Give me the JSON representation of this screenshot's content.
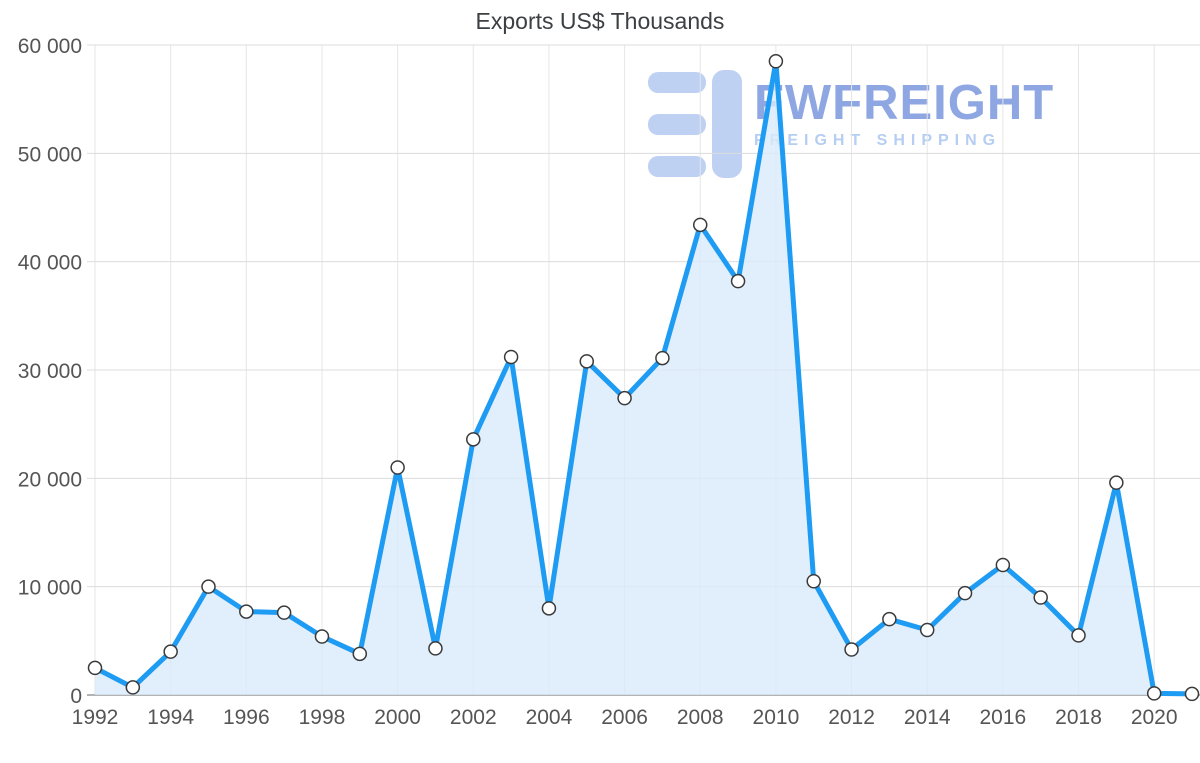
{
  "chart_data": {
    "type": "area",
    "title": "Exports US$ Thousands",
    "x": [
      1992,
      1993,
      1994,
      1995,
      1996,
      1997,
      1998,
      1999,
      2000,
      2001,
      2002,
      2003,
      2004,
      2005,
      2006,
      2007,
      2008,
      2009,
      2010,
      2011,
      2012,
      2013,
      2014,
      2015,
      2016,
      2017,
      2018,
      2019,
      2020,
      2021
    ],
    "values": [
      2500,
      700,
      4000,
      10000,
      7700,
      7600,
      5400,
      3800,
      21000,
      4300,
      23600,
      31200,
      8000,
      30800,
      27400,
      31100,
      43400,
      38200,
      58500,
      10500,
      4200,
      7000,
      6000,
      9400,
      12000,
      9000,
      5500,
      19600,
      150,
      100
    ],
    "ylim": [
      0,
      60000
    ],
    "ytick_step": 10000,
    "ytick_labels": [
      "0",
      "10 000",
      "20 000",
      "30 000",
      "40 000",
      "50 000",
      "60 000"
    ],
    "xtick_labels": [
      "1992",
      "1994",
      "1996",
      "1998",
      "2000",
      "2002",
      "2004",
      "2006",
      "2008",
      "2010",
      "2012",
      "2014",
      "2016",
      "2018",
      "2020"
    ],
    "grid": "on",
    "legend": "none",
    "line_color": "#1e9bf2",
    "fill_color": "#d9eafa",
    "marker_fill": "#ffffff",
    "marker_stroke": "#3a3a3a",
    "grid_color_h": "#dcdcdc",
    "grid_color_v": "#e6e6e6",
    "axis_color": "#9a9a9a",
    "label_color": "#555555"
  },
  "watermark": {
    "brand": "FWFREIGHT",
    "tagline": "FREIGHT SHIPPING",
    "brand_color": "#7b97dc",
    "tagline_color": "#a9c6ef",
    "logo_color": "#b5caf0"
  }
}
